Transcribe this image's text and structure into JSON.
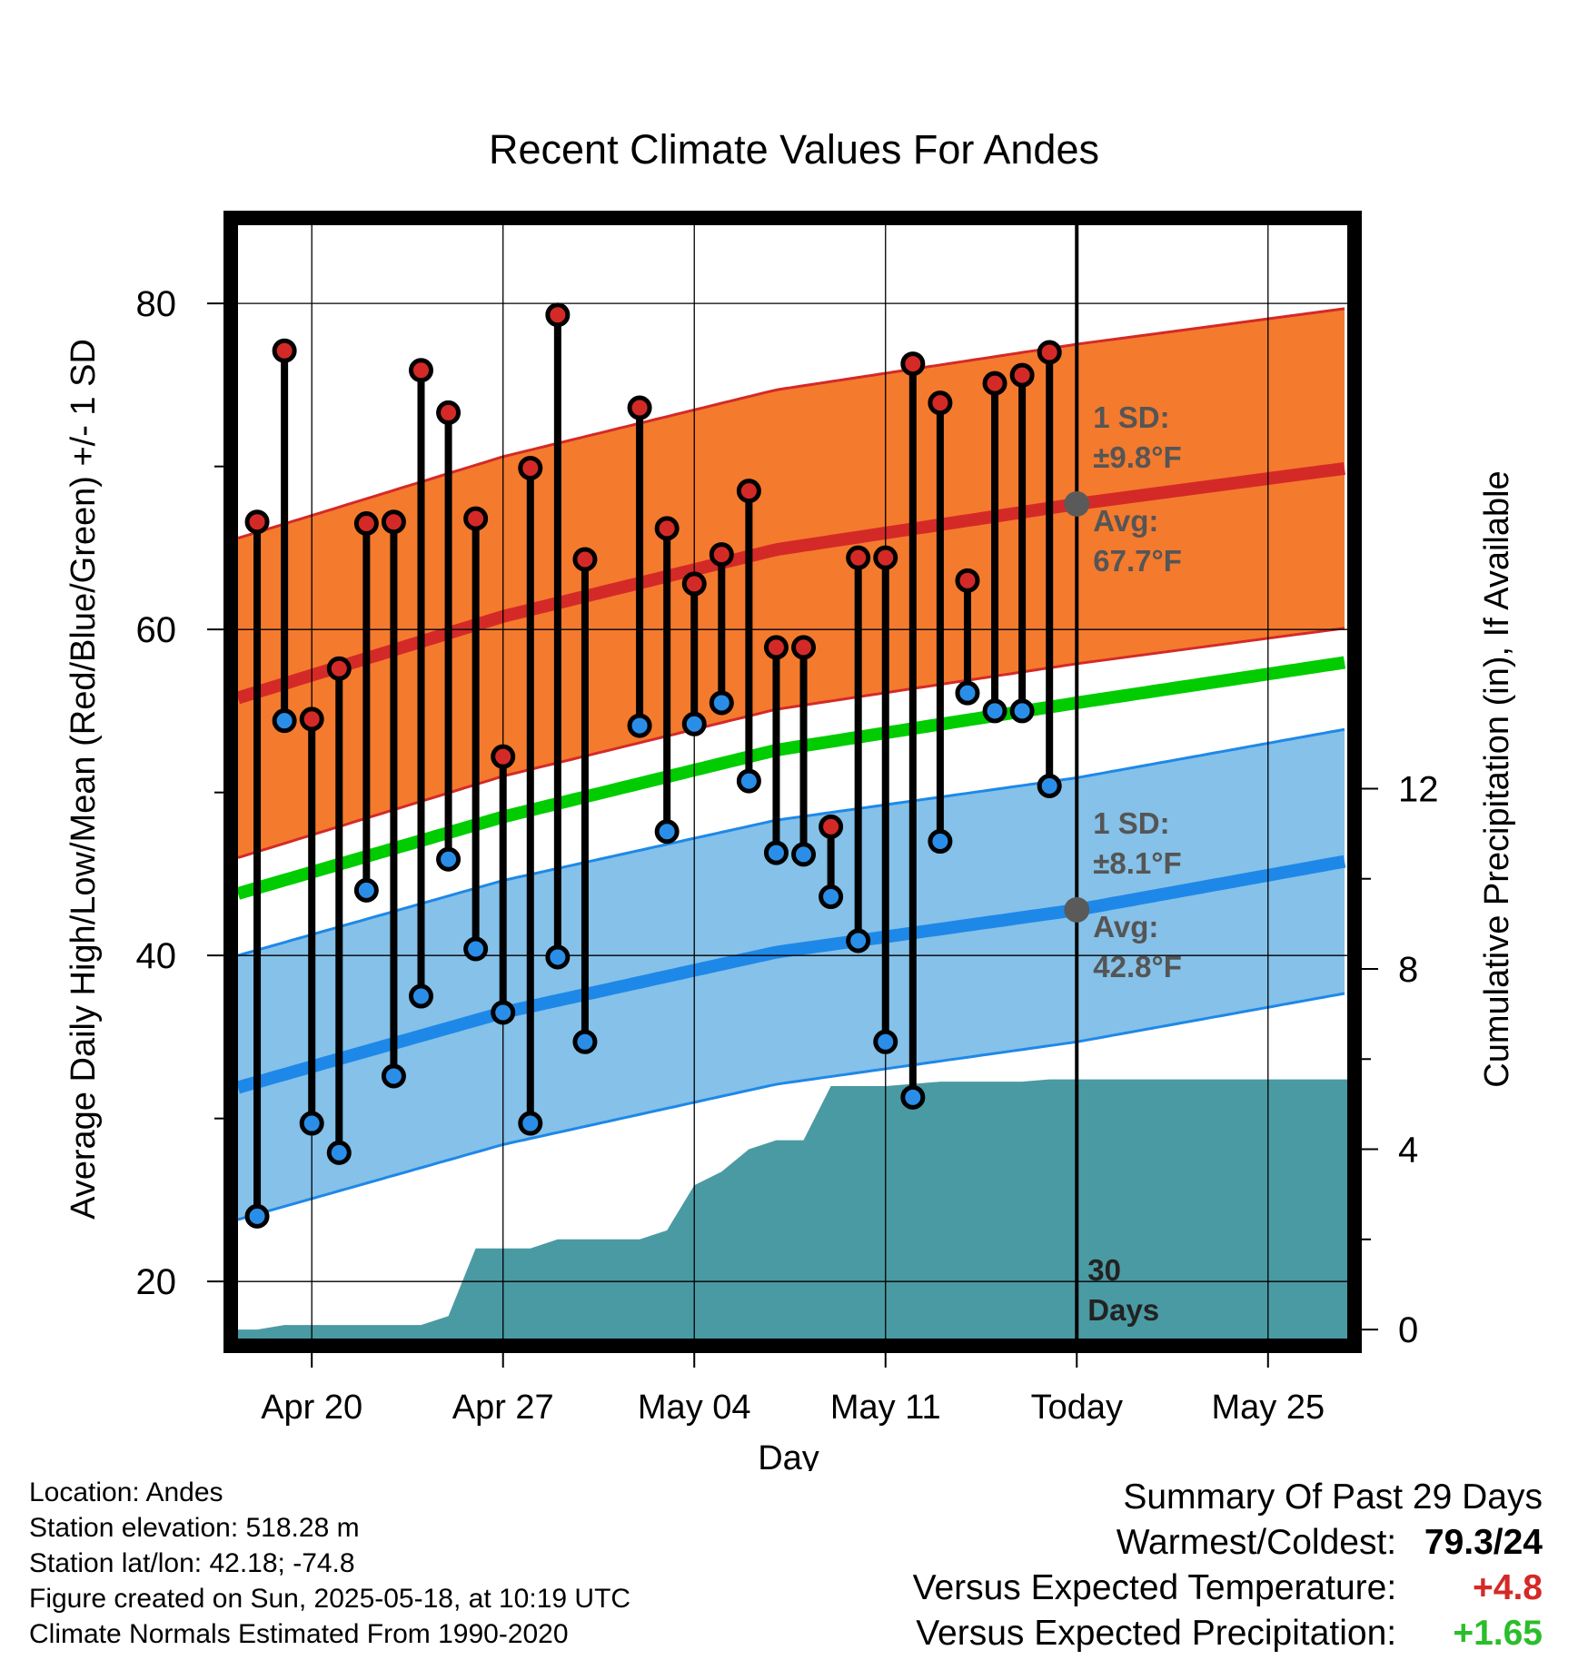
{
  "chart_data": {
    "type": "line",
    "title": "Recent Climate Values For Andes",
    "xlabel": "Day",
    "ylabel": "Average Daily High/Low/Mean (Red/Blue/Green) +/- 1 SD",
    "y2label": "Cumulative Precipitation (in), If Available",
    "x_tick_labels": [
      "Apr 20",
      "Apr 27",
      "May 04",
      "May 11",
      "Today",
      "May 25"
    ],
    "x_tick_days": [
      2,
      9,
      16,
      23,
      30,
      37
    ],
    "xlim": [
      -0.7,
      39.9
    ],
    "ylim": [
      16.5,
      84.8
    ],
    "y_ticks": [
      20,
      40,
      60,
      80
    ],
    "y2lim": [
      -0.2,
      24.5
    ],
    "y2_ticks": [
      0,
      4,
      8,
      12
    ],
    "grid": true,
    "today_day": 30,
    "today_label": [
      "30",
      "Days"
    ],
    "series": [
      {
        "name": "High",
        "color": "#d42a27",
        "x": [
          0,
          1,
          2,
          3,
          4,
          5,
          6,
          7,
          8,
          9,
          10,
          11,
          12,
          14,
          15,
          16,
          17,
          18,
          19,
          20,
          21,
          22,
          23,
          24,
          25,
          26,
          27,
          28,
          29
        ],
        "values": [
          66.6,
          77.1,
          54.5,
          57.6,
          66.5,
          66.6,
          75.9,
          73.3,
          66.8,
          52.2,
          69.9,
          79.3,
          64.3,
          73.6,
          66.2,
          62.8,
          64.6,
          68.5,
          58.9,
          58.9,
          47.9,
          64.4,
          64.4,
          76.3,
          73.9,
          63.0,
          75.1,
          75.6,
          77.0
        ]
      },
      {
        "name": "Low",
        "color": "#2a8ee8",
        "x": [
          0,
          1,
          2,
          3,
          4,
          5,
          6,
          7,
          8,
          9,
          10,
          11,
          12,
          14,
          15,
          16,
          17,
          18,
          19,
          20,
          21,
          22,
          23,
          24,
          25,
          26,
          27,
          28,
          29
        ],
        "values": [
          24.0,
          54.4,
          29.7,
          27.9,
          44.0,
          32.6,
          37.5,
          45.9,
          40.4,
          36.5,
          29.7,
          39.9,
          34.7,
          54.1,
          47.6,
          54.2,
          55.5,
          50.7,
          46.3,
          46.2,
          43.6,
          40.9,
          34.7,
          31.3,
          47.0,
          56.1,
          55.0,
          55.0,
          50.4
        ]
      },
      {
        "name": "Mean",
        "color": "#00cc00",
        "x": [
          -0.7,
          9,
          19,
          30,
          39.9
        ],
        "values": [
          43.8,
          48.5,
          52.6,
          55.5,
          58.0
        ]
      }
    ],
    "normals": {
      "high": {
        "x": [
          -0.7,
          9,
          19,
          30,
          39.9
        ],
        "avg": [
          55.8,
          60.8,
          64.9,
          67.7,
          69.9
        ],
        "sd": 9.8,
        "color": "#d42a27",
        "band_color": "#f47a2e"
      },
      "low": {
        "x": [
          -0.7,
          9,
          19,
          30,
          39.9
        ],
        "avg": [
          31.9,
          36.5,
          40.2,
          42.8,
          45.8
        ],
        "sd": 8.1,
        "color": "#1e88e8",
        "band_color": "#85c1e8"
      }
    },
    "precipitation": {
      "color": "#4a9aa3",
      "x": [
        -0.7,
        0,
        1,
        2,
        3,
        4,
        5,
        6,
        7,
        8,
        9,
        10,
        11,
        12,
        13,
        14,
        15,
        16,
        17,
        18,
        19,
        20,
        21,
        22,
        23,
        24,
        25,
        26,
        27,
        28,
        29,
        39.9
      ],
      "values": [
        0.0,
        0.0,
        0.1,
        0.1,
        0.1,
        0.1,
        0.1,
        0.1,
        0.3,
        1.8,
        1.8,
        1.8,
        2.0,
        2.0,
        2.0,
        2.0,
        2.2,
        3.2,
        3.5,
        4.0,
        4.2,
        4.2,
        5.4,
        5.4,
        5.4,
        5.45,
        5.5,
        5.5,
        5.5,
        5.5,
        5.55,
        5.55
      ]
    },
    "annotations": {
      "high": {
        "sd_title": "1 SD:",
        "sd_value": "±9.8°F",
        "avg_title": "Avg:",
        "avg_value": "67.7°F",
        "avg": 67.7
      },
      "low": {
        "sd_title": "1 SD:",
        "sd_value": "±8.1°F",
        "avg_title": "Avg:",
        "avg_value": "42.8°F",
        "avg": 42.8
      }
    }
  },
  "footer": {
    "location": "Location: Andes",
    "elevation": "Station elevation: 518.28 m",
    "latlon": "Station lat/lon: 42.18; -74.8",
    "created": "Figure created on Sun, 2025-05-18, at 10:19 UTC",
    "normals": "Climate Normals Estimated From 1990-2020"
  },
  "summary": {
    "title": "Summary Of Past 29 Days",
    "warm_cold_label": "Warmest/Coldest:",
    "warm_cold_value": "79.3/24",
    "temp_label": "Versus Expected Temperature:",
    "temp_value": "+4.8",
    "temp_color": "#d42a27",
    "precip_label": "Versus Expected Precipitation:",
    "precip_value": "+1.65",
    "precip_color": "#2bbd2b"
  }
}
